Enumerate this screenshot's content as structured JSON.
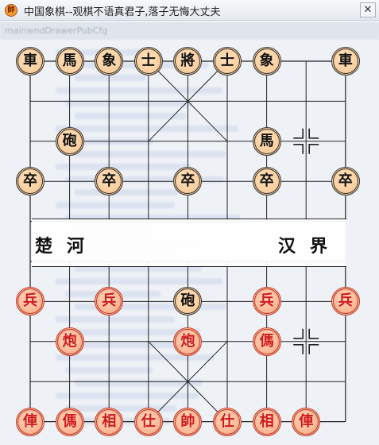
{
  "window": {
    "title": "中国象棋--观棋不语真君子,落子无悔大丈夫",
    "app_icon_glyph": "帥",
    "close_label": "✕"
  },
  "background": {
    "tab_text": "mainwndDrawerPubCfg"
  },
  "river": {
    "left_text": "楚河",
    "right_text": "汉界"
  },
  "pieces": [
    {
      "side": "black",
      "label": "車",
      "col": 0,
      "row": 0
    },
    {
      "side": "black",
      "label": "馬",
      "col": 1,
      "row": 0
    },
    {
      "side": "black",
      "label": "象",
      "col": 2,
      "row": 0
    },
    {
      "side": "black",
      "label": "士",
      "col": 3,
      "row": 0
    },
    {
      "side": "black",
      "label": "將",
      "col": 4,
      "row": 0
    },
    {
      "side": "black",
      "label": "士",
      "col": 5,
      "row": 0
    },
    {
      "side": "black",
      "label": "象",
      "col": 6,
      "row": 0
    },
    {
      "side": "black",
      "label": "車",
      "col": 8,
      "row": 0
    },
    {
      "side": "black",
      "label": "砲",
      "col": 1,
      "row": 2
    },
    {
      "side": "black",
      "label": "馬",
      "col": 6,
      "row": 2
    },
    {
      "side": "black",
      "label": "卒",
      "col": 0,
      "row": 3
    },
    {
      "side": "black",
      "label": "卒",
      "col": 2,
      "row": 3
    },
    {
      "side": "black",
      "label": "卒",
      "col": 4,
      "row": 3
    },
    {
      "side": "black",
      "label": "卒",
      "col": 6,
      "row": 3
    },
    {
      "side": "black",
      "label": "卒",
      "col": 8,
      "row": 3
    },
    {
      "side": "black",
      "label": "砲",
      "col": 4,
      "row": 6
    },
    {
      "side": "red",
      "label": "兵",
      "col": 0,
      "row": 6
    },
    {
      "side": "red",
      "label": "兵",
      "col": 2,
      "row": 6
    },
    {
      "side": "red",
      "label": "兵",
      "col": 6,
      "row": 6
    },
    {
      "side": "red",
      "label": "兵",
      "col": 8,
      "row": 6
    },
    {
      "side": "red",
      "label": "炮",
      "col": 1,
      "row": 7
    },
    {
      "side": "red",
      "label": "炮",
      "col": 4,
      "row": 7
    },
    {
      "side": "red",
      "label": "傌",
      "col": 6,
      "row": 7
    },
    {
      "side": "red",
      "label": "俥",
      "col": 0,
      "row": 9
    },
    {
      "side": "red",
      "label": "傌",
      "col": 1,
      "row": 9
    },
    {
      "side": "red",
      "label": "相",
      "col": 2,
      "row": 9
    },
    {
      "side": "red",
      "label": "仕",
      "col": 3,
      "row": 9
    },
    {
      "side": "red",
      "label": "帥",
      "col": 4,
      "row": 9
    },
    {
      "side": "red",
      "label": "仕",
      "col": 5,
      "row": 9
    },
    {
      "side": "red",
      "label": "相",
      "col": 6,
      "row": 9
    },
    {
      "side": "red",
      "label": "俥",
      "col": 7,
      "row": 9
    }
  ],
  "move_markers": [
    {
      "col": 7,
      "row": 2
    },
    {
      "col": 7,
      "row": 7
    }
  ],
  "colors": {
    "red_piece_text": "#d0191b",
    "black_piece_text": "#111111",
    "grid_line": "#222222"
  }
}
